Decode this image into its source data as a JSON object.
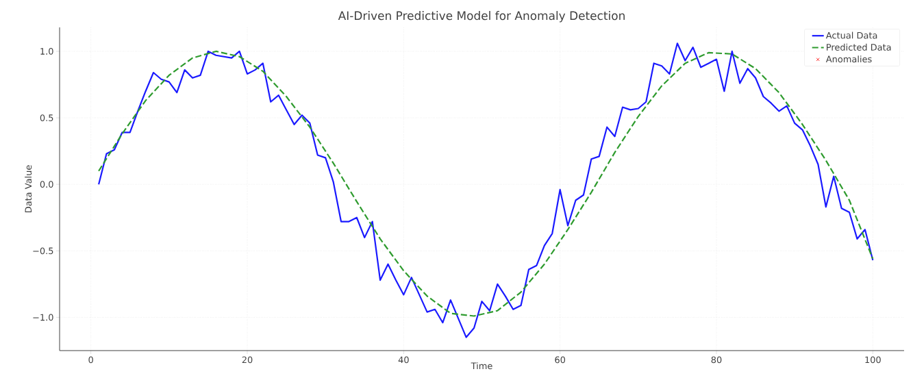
{
  "chart_data": {
    "type": "line",
    "title": "AI-Driven Predictive Model for Anomaly Detection",
    "xlabel": "Time",
    "ylabel": "Data Value",
    "xlim": [
      -4,
      104
    ],
    "ylim": [
      -1.25,
      1.18
    ],
    "xticks": [
      0,
      20,
      40,
      60,
      80,
      100
    ],
    "yticks": [
      {
        "value": -1,
        "label": "−1.0"
      },
      {
        "value": -0.5,
        "label": "−0.5"
      },
      {
        "value": 0,
        "label": "0.0"
      },
      {
        "value": 0.5,
        "label": "0.5"
      },
      {
        "value": 1,
        "label": "1.0"
      }
    ],
    "grid": true,
    "legend": "top right",
    "series": [
      {
        "name": "Actual Data",
        "color": "#1a1aff",
        "line_style": "solid",
        "x": [
          1,
          2,
          3,
          4,
          5,
          6,
          7,
          8,
          9,
          10,
          11,
          12,
          13,
          14,
          15,
          16,
          17,
          18,
          19,
          20,
          21,
          22,
          23,
          24,
          25,
          26,
          27,
          28,
          29,
          30,
          31,
          32,
          33,
          34,
          35,
          36,
          37,
          38,
          39,
          40,
          41,
          42,
          43,
          44,
          45,
          46,
          47,
          48,
          49,
          50,
          51,
          52,
          53,
          54,
          55,
          56,
          57,
          58,
          59,
          60,
          61,
          62,
          63,
          64,
          65,
          66,
          67,
          68,
          69,
          70,
          71,
          72,
          73,
          74,
          75,
          76,
          77,
          78,
          79,
          80,
          81,
          82,
          83,
          84,
          85,
          86,
          87,
          88,
          89,
          90,
          91,
          92,
          93,
          94,
          95,
          96,
          97,
          98,
          99,
          100
        ],
        "values": [
          0.0,
          0.23,
          0.26,
          0.39,
          0.39,
          0.55,
          0.7,
          0.84,
          0.79,
          0.77,
          0.69,
          0.86,
          0.8,
          0.82,
          1.0,
          0.97,
          0.96,
          0.95,
          1.0,
          0.83,
          0.86,
          0.91,
          0.62,
          0.67,
          0.56,
          0.45,
          0.52,
          0.46,
          0.22,
          0.2,
          0.02,
          -0.28,
          -0.28,
          -0.25,
          -0.4,
          -0.28,
          -0.72,
          -0.6,
          -0.72,
          -0.83,
          -0.7,
          -0.83,
          -0.96,
          -0.94,
          -1.04,
          -0.87,
          -1.01,
          -1.15,
          -1.08,
          -0.88,
          -0.95,
          -0.75,
          -0.84,
          -0.94,
          -0.91,
          -0.64,
          -0.61,
          -0.46,
          -0.37,
          -0.04,
          -0.31,
          -0.12,
          -0.08,
          0.19,
          0.21,
          0.43,
          0.36,
          0.58,
          0.56,
          0.57,
          0.62,
          0.91,
          0.89,
          0.83,
          1.06,
          0.93,
          1.03,
          0.88,
          0.91,
          0.94,
          0.7,
          1.0,
          0.76,
          0.87,
          0.8,
          0.66,
          0.61,
          0.55,
          0.59,
          0.46,
          0.41,
          0.29,
          0.15,
          -0.17,
          0.06,
          -0.18,
          -0.21,
          -0.41,
          -0.34,
          -0.57
        ]
      },
      {
        "name": "Predicted Data",
        "color": "#2e9b2e",
        "line_style": "dashed",
        "x": [
          1,
          4,
          7,
          10,
          13,
          16,
          19,
          22,
          25,
          28,
          31,
          34,
          37,
          40,
          43,
          46,
          49,
          52,
          55,
          58,
          61,
          64,
          67,
          70,
          73,
          76,
          79,
          82,
          85,
          88,
          91,
          94,
          97,
          100
        ],
        "values": [
          0.1,
          0.38,
          0.63,
          0.82,
          0.95,
          1.0,
          0.96,
          0.85,
          0.66,
          0.43,
          0.16,
          -0.13,
          -0.41,
          -0.65,
          -0.84,
          -0.97,
          -0.99,
          -0.95,
          -0.81,
          -0.6,
          -0.34,
          -0.06,
          0.24,
          0.51,
          0.74,
          0.91,
          0.99,
          0.98,
          0.87,
          0.69,
          0.45,
          0.18,
          -0.12,
          -0.56
        ]
      },
      {
        "name": "Anomalies",
        "type": "scatter",
        "color": "#ff0000",
        "marker": "cross"
      }
    ]
  }
}
